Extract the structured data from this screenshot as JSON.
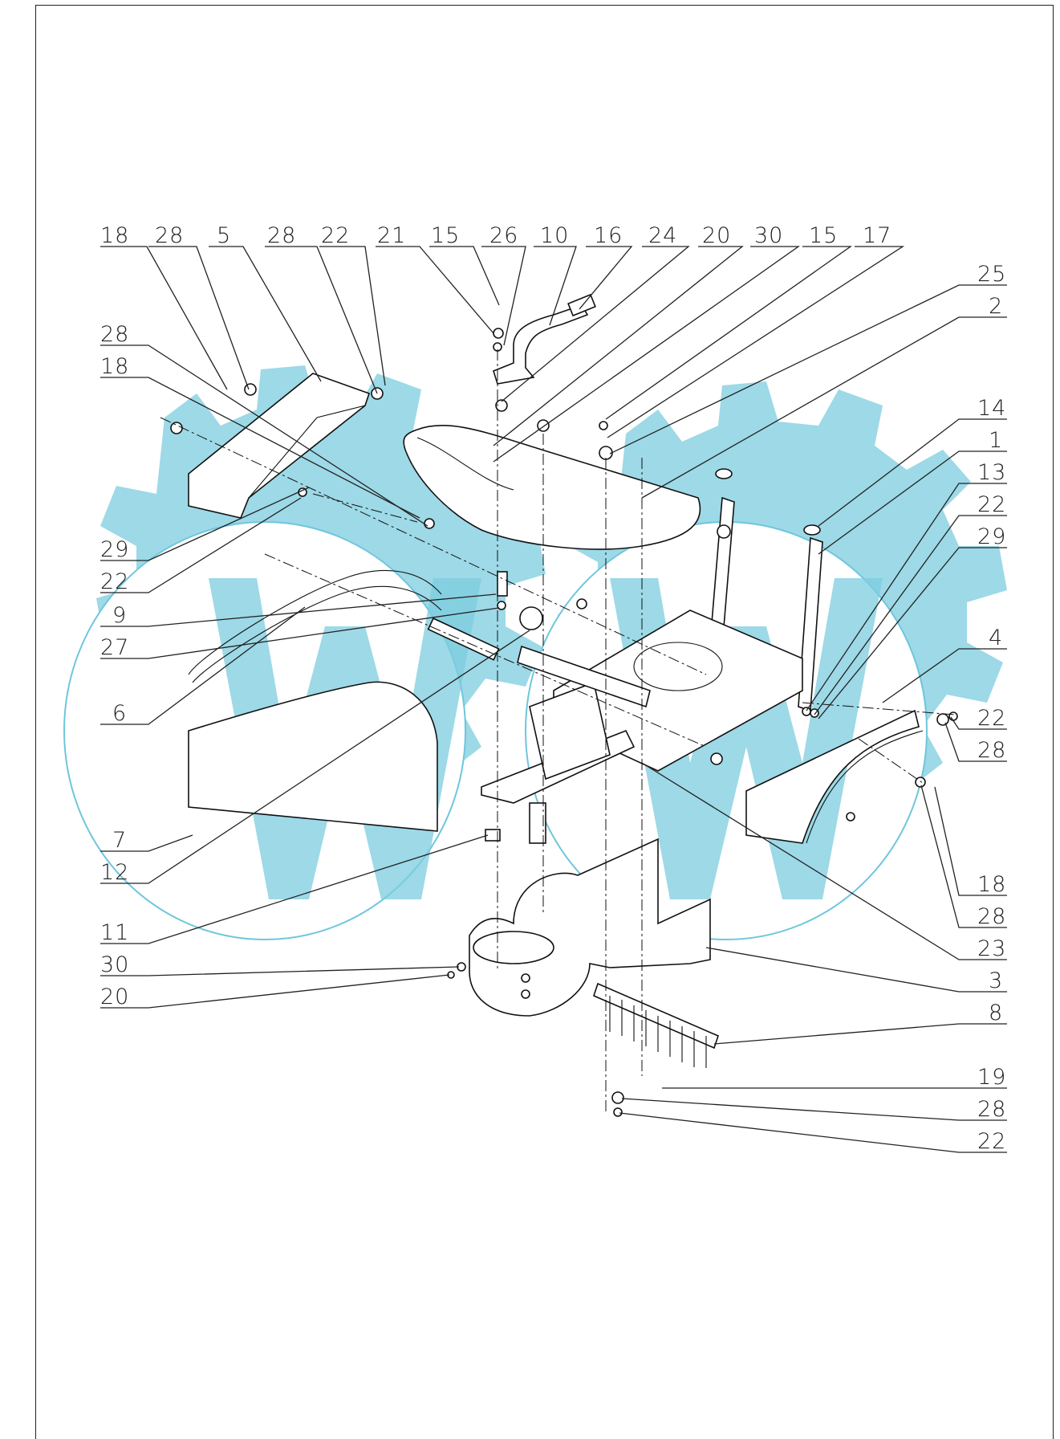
{
  "colors": {
    "watermark": "#7cccdf",
    "line": "#111111",
    "background": "#ffffff"
  },
  "labels": {
    "top_row": [
      "18",
      "28",
      "5",
      "28",
      "22",
      "21",
      "15",
      "26",
      "10",
      "16",
      "24",
      "20",
      "30",
      "15",
      "17"
    ],
    "right_column": [
      "25",
      "2",
      "14",
      "1",
      "13",
      "22",
      "29",
      "4",
      "22",
      "28",
      "18",
      "28",
      "23",
      "3",
      "8",
      "19",
      "28",
      "22"
    ],
    "left_column": [
      "28",
      "18",
      "29",
      "22",
      "9",
      "27",
      "6",
      "7",
      "12",
      "11",
      "30",
      "20"
    ]
  }
}
